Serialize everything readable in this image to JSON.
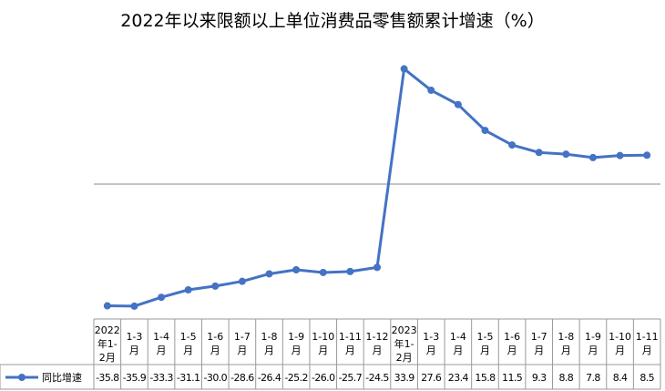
{
  "chart_data": {
    "type": "line",
    "title": "2022年以来限额以上单位消费品零售额累计增速（%）",
    "categories": [
      [
        "2022",
        "年1-",
        "2月"
      ],
      [
        "1-3",
        "月"
      ],
      [
        "1-4",
        "月"
      ],
      [
        "1-5",
        "月"
      ],
      [
        "1-6",
        "月"
      ],
      [
        "1-7",
        "月"
      ],
      [
        "1-8",
        "月"
      ],
      [
        "1-9",
        "月"
      ],
      [
        "1-10",
        "月"
      ],
      [
        "1-11",
        "月"
      ],
      [
        "1-12",
        "月"
      ],
      [
        "2023",
        "年1-",
        "2月"
      ],
      [
        "1-3",
        "月"
      ],
      [
        "1-4",
        "月"
      ],
      [
        "1-5",
        "月"
      ],
      [
        "1-6",
        "月"
      ],
      [
        "1-7",
        "月"
      ],
      [
        "1-8",
        "月"
      ],
      [
        "1-9",
        "月"
      ],
      [
        "1-10",
        "月"
      ],
      [
        "1-11",
        "月"
      ]
    ],
    "series": [
      {
        "name": "同比增速",
        "color": "#4472C4",
        "values": [
          -35.8,
          -35.9,
          -33.3,
          -31.1,
          -30.0,
          -28.6,
          -26.4,
          -25.2,
          -26.0,
          -25.7,
          -24.5,
          33.9,
          27.6,
          23.4,
          15.8,
          11.5,
          9.3,
          8.8,
          7.8,
          8.4,
          8.5
        ]
      }
    ],
    "value_labels": [
      "-35.8",
      "-35.9",
      "-33.3",
      "-31.1",
      "-30.0",
      "-28.6",
      "-26.4",
      "-25.2",
      "-26.0",
      "-25.7",
      "-24.5",
      "33.9",
      "27.6",
      "23.4",
      "15.8",
      "11.5",
      "9.3",
      "8.8",
      "7.8",
      "8.4",
      "8.5"
    ],
    "ylim": [
      -40,
      40
    ],
    "grid": false,
    "legend": "data-table-left"
  }
}
